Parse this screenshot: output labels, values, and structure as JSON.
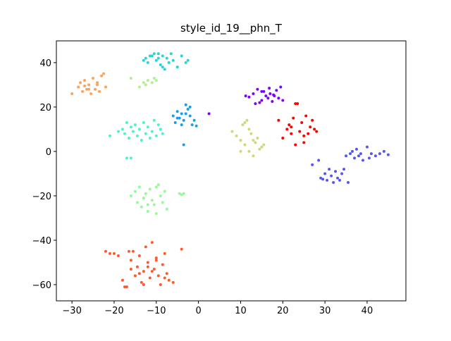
{
  "chart_data": {
    "type": "scatter",
    "title": "style_id_19__phn_T",
    "xlim": [
      -33.7,
      49.2
    ],
    "ylim": [
      -67.3,
      49.8
    ],
    "xticks": [
      {
        "value": -30,
        "label": "−30"
      },
      {
        "value": -20,
        "label": "−20"
      },
      {
        "value": -10,
        "label": "−10"
      },
      0,
      10,
      20,
      30,
      40
    ],
    "yticks": [
      {
        "value": -60,
        "label": "−60"
      },
      {
        "value": -40,
        "label": "−40"
      },
      {
        "value": -20,
        "label": "−20"
      },
      0,
      20,
      40
    ],
    "series": [
      {
        "color": "#8000ff",
        "x": [
          11.2,
          12,
          13,
          14,
          14.5,
          15,
          15.5,
          16,
          16.5,
          17,
          17.5,
          18,
          18.5,
          19,
          19.5,
          20,
          13.5,
          15,
          2.5,
          16.8,
          17.8
        ],
        "values": [
          25,
          24.5,
          26,
          28,
          22,
          23,
          27,
          25,
          24,
          26,
          22.5,
          25,
          27.5,
          24,
          29,
          23,
          21.5,
          27,
          17,
          28.5,
          25.5
        ]
      },
      {
        "color": "#5558f0",
        "x": [
          27,
          28.5,
          29,
          30,
          30.5,
          31,
          31.5,
          32,
          32.5,
          33,
          33.5,
          34,
          35,
          35.5,
          36,
          36.5,
          37,
          37.5,
          38,
          38.5,
          39,
          40,
          40.5,
          41,
          42,
          43,
          44,
          45,
          34.5,
          29.5
        ],
        "values": [
          -6,
          -4,
          -12,
          -10,
          -13,
          -8,
          -11,
          -14,
          -9,
          -12,
          -13,
          -10,
          -2,
          -14,
          -1,
          0,
          -3,
          1,
          -2,
          -1,
          -4,
          2,
          -3,
          -1,
          -2,
          -1,
          0,
          -1.5,
          -8,
          -12.5
        ]
      },
      {
        "color": "#1a9ee6",
        "x": [
          -6,
          -5.5,
          -5,
          -4.5,
          -4,
          -3.5,
          -3,
          -2.5,
          -2,
          -1.5,
          -1,
          -0.5,
          -3,
          -4,
          -2,
          -5,
          -3.5
        ],
        "values": [
          16,
          13,
          18,
          15,
          17,
          14,
          21,
          19,
          16,
          12,
          14,
          11.5,
          17,
          12,
          20,
          15,
          3
        ]
      },
      {
        "color": "#2ad4d4",
        "x": [
          -13,
          -12.5,
          -12,
          -11,
          -10.5,
          -10,
          -9.5,
          -9,
          -8.5,
          -8,
          -7.5,
          -7,
          -6.5,
          -6,
          -5,
          -4,
          -3,
          -2.5,
          -11.5,
          -8.5,
          -9.5
        ],
        "values": [
          41,
          42,
          40,
          43,
          44,
          41,
          42,
          39,
          43,
          37,
          42,
          40,
          44,
          41,
          38,
          43,
          40,
          41,
          43,
          38,
          44
        ]
      },
      {
        "color": "#4ef3c8",
        "x": [
          -21,
          -19,
          -18,
          -17.5,
          -17,
          -16.5,
          -16,
          -15.5,
          -15,
          -14.5,
          -14,
          -13.5,
          -13,
          -12.5,
          -12,
          -11.5,
          -11,
          -10.5,
          -10,
          -9.5,
          -9,
          -8.5,
          -17,
          -16
        ],
        "values": [
          7,
          9,
          10,
          8,
          13,
          6,
          11,
          9,
          12,
          7,
          10,
          5,
          13,
          8,
          11,
          6,
          9,
          14,
          7,
          12,
          10,
          8,
          -3,
          -3
        ]
      },
      {
        "color": "#98f89a",
        "x": [
          -16,
          -15,
          -14.5,
          -14,
          -13.5,
          -13,
          -12.5,
          -12,
          -11.5,
          -11,
          -10.5,
          -10,
          -9.5,
          -9,
          -8.5,
          -8,
          -7.5,
          -4.5,
          -4,
          -3.5,
          -12,
          -10
        ],
        "values": [
          -20,
          -18,
          -23,
          -16,
          -25,
          -21,
          -19,
          -27,
          -17,
          -22,
          -24,
          -28,
          -15,
          -20,
          -23,
          -18,
          -26,
          -19,
          -19.5,
          -19,
          -24,
          -16
        ]
      },
      {
        "color": "#b0f090",
        "x": [
          -16,
          -14,
          -13,
          -12.5,
          -12,
          -11,
          -10.5,
          -10
        ],
        "values": [
          33,
          29,
          31,
          30,
          32,
          31,
          33,
          32
        ]
      },
      {
        "color": "#c8dc7e",
        "x": [
          8,
          9,
          10,
          10.5,
          11,
          11.5,
          12,
          12.5,
          13,
          13.5,
          14,
          14.5,
          15,
          15.5,
          11,
          12,
          10,
          13
        ],
        "values": [
          9,
          7,
          5,
          12,
          3,
          14,
          0,
          8,
          -2,
          4,
          6,
          1,
          2,
          3,
          13,
          10,
          0,
          5
        ]
      },
      {
        "color": "#ffa256",
        "x": [
          -30,
          -28.5,
          -28,
          -27.5,
          -27,
          -26.5,
          -26,
          -25.5,
          -25,
          -24.5,
          -24,
          -23.5,
          -23,
          -22.5,
          -22,
          -26,
          -24,
          -27
        ],
        "values": [
          26,
          29,
          31,
          27,
          32,
          28,
          30,
          26,
          33,
          28,
          31,
          27,
          34,
          35,
          29,
          28,
          30,
          29.5
        ]
      },
      {
        "color": "#ff5a2e",
        "x": [
          -22,
          -21,
          -20,
          -19,
          -18,
          -17,
          -16.5,
          -16,
          -15.5,
          -15,
          -14.5,
          -14,
          -13.5,
          -13,
          -12.5,
          -12,
          -11.5,
          -11,
          -10.5,
          -10,
          -9.5,
          -9,
          -8.5,
          -8,
          -7.5,
          -7,
          -6,
          -4,
          -17.5,
          -16,
          -14,
          -12,
          -10,
          -8,
          -13,
          -11
        ],
        "values": [
          -45,
          -46,
          -46,
          -47,
          -58,
          -61,
          -45,
          -49,
          -45,
          -56,
          -52,
          -47,
          -59,
          -54,
          -43,
          -50,
          -57,
          -41,
          -53,
          -48,
          -56,
          -60,
          -51,
          -46,
          -55,
          -58,
          -59,
          -44,
          -61,
          -53,
          -55,
          -52,
          -49,
          -57,
          -60,
          -54
        ]
      },
      {
        "color": "#ff0000",
        "x": [
          19,
          20,
          21,
          21.5,
          22,
          22.5,
          23,
          23.5,
          24,
          24.5,
          25,
          25.5,
          26,
          26.5,
          27,
          27.5,
          28,
          23,
          25,
          22
        ],
        "values": [
          14,
          6,
          10,
          12,
          11,
          15,
          3,
          21.5,
          9,
          13,
          7,
          16,
          8,
          11,
          14,
          10,
          9,
          21.5,
          4,
          8
        ]
      }
    ]
  }
}
